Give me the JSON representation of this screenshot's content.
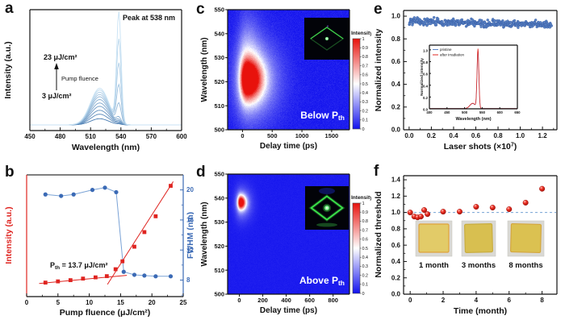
{
  "figure": {
    "background": "#ffffff"
  },
  "chart_data": [
    {
      "id": "a",
      "panel_label": "a",
      "type": "line",
      "xlabel": "Wavelength (nm)",
      "ylabel": "Intensity (a.u.)",
      "xlim": [
        450,
        600
      ],
      "xticks": [
        450,
        480,
        510,
        540,
        570,
        600
      ],
      "xtick_labels": [
        "450",
        "480",
        "510",
        "540",
        "570",
        "600"
      ],
      "annotation_peak": "Peak at 538 nm",
      "fluence_top": "23 μJ/cm²",
      "fluence_arrow_label": "Pump fluence",
      "fluence_bottom": "3 μJ/cm²",
      "broad_peak": {
        "center": 519,
        "sigma": 9
      },
      "lasing_peak": {
        "center": 538,
        "sigma": 2.2
      },
      "series": [
        {
          "fluence": 3,
          "broad": 0.055,
          "sharp": 0.004
        },
        {
          "fluence": 5,
          "broad": 0.095,
          "sharp": 0.008
        },
        {
          "fluence": 7,
          "broad": 0.13,
          "sharp": 0.013
        },
        {
          "fluence": 9,
          "broad": 0.165,
          "sharp": 0.02
        },
        {
          "fluence": 11,
          "broad": 0.195,
          "sharp": 0.03
        },
        {
          "fluence": 13,
          "broad": 0.225,
          "sharp": 0.05
        },
        {
          "fluence": 15,
          "broad": 0.25,
          "sharp": 0.17
        },
        {
          "fluence": 17,
          "broad": 0.27,
          "sharp": 0.33
        },
        {
          "fluence": 19,
          "broad": 0.29,
          "sharp": 0.52
        },
        {
          "fluence": 21,
          "broad": 0.31,
          "sharp": 0.73
        },
        {
          "fluence": 23,
          "broad": 0.325,
          "sharp": 0.97
        }
      ],
      "color_low": "#4a7db2",
      "color_high": "#c8e2f4"
    },
    {
      "id": "b",
      "panel_label": "b",
      "type": "scatter",
      "xlabel": "Pump fluence (μJ/cm²)",
      "ylabel_left": "Intensity (a.u.)",
      "ylabel_right": "FWHM (nm)",
      "xlim": [
        0,
        25
      ],
      "xticks": [
        0,
        5,
        10,
        15,
        20,
        25
      ],
      "xtick_labels": [
        "0",
        "5",
        "10",
        "15",
        "20",
        "25"
      ],
      "right_ylim": [
        5.8,
        22
      ],
      "right_yticks": [
        8,
        12,
        16,
        20
      ],
      "right_ytick_labels": [
        "8",
        "12",
        "16",
        "20"
      ],
      "threshold_label": {
        "base": "P",
        "sub": "th",
        "rest": " = 13.7 μJ/cm²"
      },
      "intensity_x": [
        3,
        5,
        7,
        9,
        11,
        12.8,
        14.2,
        15.3,
        17.2,
        18.8,
        20.6,
        23
      ],
      "intensity_y": [
        0.115,
        0.125,
        0.135,
        0.148,
        0.158,
        0.168,
        0.225,
        0.29,
        0.41,
        0.53,
        0.66,
        0.91
      ],
      "fwhm_x": [
        3,
        5.5,
        7.5,
        10.5,
        12.5,
        14.3,
        15.5,
        17.2,
        18.8,
        20.6,
        23
      ],
      "fwhm_y": [
        19.4,
        19.2,
        19.4,
        20.0,
        20.3,
        19.7,
        9.1,
        8.7,
        8.6,
        8.5,
        8.5
      ],
      "fit_line_below": {
        "x": [
          2.0,
          16.0
        ],
        "y": [
          0.108,
          0.175
        ]
      },
      "fit_line_above": {
        "x": [
          12.9,
          23.4
        ],
        "y": [
          0.1,
          0.945
        ]
      },
      "color_intensity": "#df2420",
      "color_fwhm": "#3b6ab5",
      "line_fwhm": "#7ba3d6"
    },
    {
      "id": "c",
      "panel_label": "c",
      "type": "heatmap",
      "xlabel": "Delay time (ps)",
      "ylabel": "Wavelength (nm)",
      "xlim": [
        -250,
        1800
      ],
      "xticks": [
        0,
        500,
        1000,
        1500
      ],
      "xtick_labels": [
        "0",
        "500",
        "1000",
        "1500"
      ],
      "ylim": [
        500,
        550
      ],
      "yticks": [
        500,
        510,
        520,
        530,
        540,
        550
      ],
      "ytick_labels": [
        "500",
        "510",
        "520",
        "530",
        "540",
        "550"
      ],
      "region_label": {
        "base": "Below P",
        "sub": "th"
      },
      "colorbar": {
        "title": "Intensity",
        "tick_labels": [
          "1",
          "0.9",
          "0.8",
          "0.7",
          "0.6",
          "0.5",
          "0.4",
          "0.3",
          "0.2",
          "0.1",
          "0"
        ]
      },
      "colormap": {
        "low": "#1212ee",
        "mid": "#ffffff",
        "high": "#e8120c"
      },
      "blobs": [
        {
          "t": 70,
          "wl": 521,
          "st_left": 70,
          "st_right": 170,
          "swl": 5.5,
          "amp": 1.0
        },
        {
          "t": 130,
          "wl": 521,
          "st_left": 180,
          "st_right": 320,
          "swl": 11,
          "amp": 0.4
        },
        {
          "t": 60,
          "wl": 529,
          "st_left": 90,
          "st_right": 160,
          "swl": 13,
          "amp": 0.22
        }
      ],
      "noise": 0.04,
      "seed": 7,
      "inset_image": "green-diamond-microplate-photo",
      "inset_brightness": "dim"
    },
    {
      "id": "d",
      "panel_label": "d",
      "type": "heatmap",
      "xlabel": "Delay time (ps)",
      "ylabel": "Wavelength (nm)",
      "xlim": [
        -100,
        940
      ],
      "xticks": [
        0,
        200,
        400,
        600,
        800
      ],
      "xtick_labels": [
        "0",
        "200",
        "400",
        "600",
        "800"
      ],
      "ylim": [
        500,
        550
      ],
      "yticks": [
        500,
        510,
        520,
        530,
        540,
        550
      ],
      "ytick_labels": [
        "500",
        "510",
        "520",
        "530",
        "540",
        "550"
      ],
      "region_label": {
        "base": "Above P",
        "sub": "th"
      },
      "colorbar": {
        "title": "Intensity",
        "tick_labels": [
          "1",
          "0.9",
          "0.8",
          "0.7",
          "0.6",
          "0.5",
          "0.4",
          "0.3",
          "0.2",
          "0.1",
          "0"
        ]
      },
      "colormap": {
        "low": "#1212ee",
        "mid": "#ffffff",
        "high": "#e8120c"
      },
      "blobs": [
        {
          "t": 10,
          "wl": 538.3,
          "st_left": 18,
          "st_right": 30,
          "swl": 2.0,
          "amp": 1.0
        },
        {
          "t": 14,
          "wl": 537.8,
          "st_left": 35,
          "st_right": 60,
          "swl": 4.5,
          "amp": 0.28
        }
      ],
      "noise": 0.015,
      "seed": 11,
      "inset_image": "green-diamond-microplate-photo",
      "inset_brightness": "bright"
    },
    {
      "id": "e",
      "panel_label": "e",
      "type": "scatter",
      "xlabel_parts": {
        "pre": "Laser shots (×10",
        "sup": "7",
        "post": ")"
      },
      "ylabel": "Normalized intensity",
      "xlim": [
        -0.05,
        1.33
      ],
      "xticks": [
        0.0,
        0.2,
        0.4,
        0.6,
        0.8,
        1.0,
        1.2
      ],
      "xtick_labels": [
        "0.0",
        "0.2",
        "0.4",
        "0.6",
        "0.8",
        "1.0",
        "1.2"
      ],
      "ylim": [
        0,
        1.05
      ],
      "yticks": [
        0.0,
        0.2,
        0.4,
        0.6,
        0.8,
        1.0
      ],
      "ytick_labels": [
        "0.0",
        "0.2",
        "0.4",
        "0.6",
        "0.8",
        "1.0"
      ],
      "band": {
        "n": 380,
        "x_start": 0.0,
        "x_end": 1.28,
        "y_start": 0.955,
        "y_end": 0.925,
        "noise": 0.031,
        "seed": 3
      },
      "marker_color": "#5b84c6",
      "marker_edge": "#31569e",
      "inset": {
        "xlabel": "Wavelength (nm)",
        "ylabel": "Normalized intensity",
        "xlim": [
          400,
          650
        ],
        "xticks": [
          400,
          450,
          500,
          550,
          600,
          650
        ],
        "xtick_labels": [
          "400",
          "450",
          "500",
          "550",
          "600",
          "650"
        ],
        "ylim": [
          0,
          1.08
        ],
        "yticks": [
          0.0,
          0.2,
          0.4,
          0.6,
          0.8,
          1.0
        ],
        "ytick_labels": [
          "0.0",
          "0.2",
          "0.4",
          "0.6",
          "0.8",
          "1.0"
        ],
        "legend": [
          {
            "label": "pristine",
            "color": "#5b84c6"
          },
          {
            "label": "after irradiation",
            "color": "#e02722"
          }
        ],
        "peak": {
          "center": 538,
          "sigma": 2.6
        },
        "bump": {
          "center": 523,
          "sigma": 8
        },
        "series": [
          {
            "name": "pristine",
            "peak_amp": 0.96,
            "bump_amp": 0.085,
            "color": "#5b84c6"
          },
          {
            "name": "after irradiation",
            "peak_amp": 1.0,
            "bump_amp": 0.09,
            "color": "#e02722"
          }
        ]
      }
    },
    {
      "id": "f",
      "panel_label": "f",
      "type": "scatter",
      "xlabel": "Time (month)",
      "ylabel": "Normalized threshold",
      "xlim": [
        -0.4,
        8.9
      ],
      "xticks": [
        0,
        2,
        4,
        6,
        8
      ],
      "xtick_labels": [
        "0",
        "2",
        "4",
        "6",
        "8"
      ],
      "ylim": [
        0,
        1.45
      ],
      "yticks": [
        0.0,
        0.2,
        0.4,
        0.6,
        0.8,
        1.0,
        1.2,
        1.4
      ],
      "ytick_labels": [
        "0.0",
        "0.2",
        "0.4",
        "0.6",
        "0.8",
        "1.0",
        "1.2",
        "1.4"
      ],
      "points_x": [
        0,
        0.25,
        0.45,
        0.65,
        0.85,
        1.05,
        2,
        3,
        4,
        5,
        6,
        7,
        8
      ],
      "points_y": [
        1.0,
        0.95,
        0.94,
        0.95,
        1.03,
        0.98,
        1.01,
        1.01,
        1.07,
        1.06,
        1.04,
        1.12,
        1.29
      ],
      "baseline": 1.0,
      "baseline_color": "#76a3d4",
      "marker_color": "#e8261f",
      "photo_bg": "#dad9d4",
      "photos": [
        {
          "label": "1 month",
          "film": "#e2cb68",
          "edge": "#e0a33a"
        },
        {
          "label": "3 months",
          "film": "#d8bf50",
          "edge": "#c9ad3f"
        },
        {
          "label": "8 months",
          "film": "#dbc151",
          "edge": "#d4a63e"
        }
      ]
    }
  ]
}
